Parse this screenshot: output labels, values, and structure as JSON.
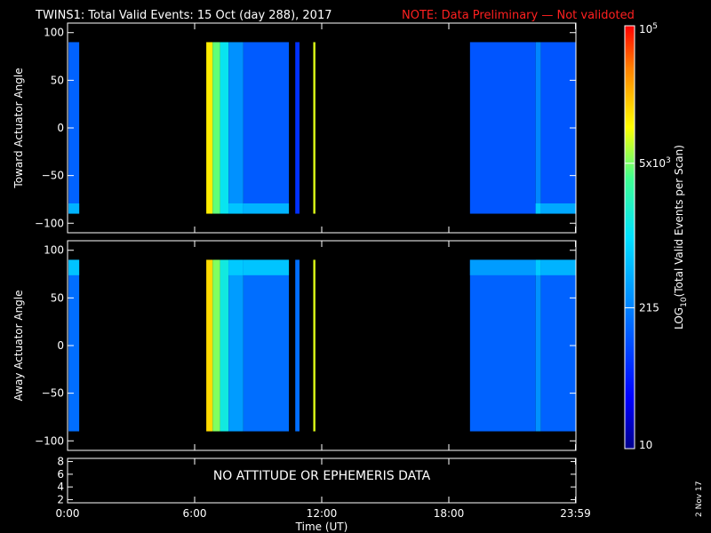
{
  "header": {
    "title": "TWINS1: Total Valid Events: 15 Oct (day 288), 2017",
    "note": "NOTE: Data Preliminary — Not validoted"
  },
  "chart_data": [
    {
      "type": "heatmap",
      "ylabel": "Toward Actuator Angle",
      "ylim": [
        -110,
        110
      ],
      "yticks": [
        "100",
        "50",
        "0",
        "−50",
        "−100"
      ],
      "ytick_values": [
        100,
        50,
        0,
        -50,
        -100
      ],
      "xlim_hours": [
        0,
        24
      ],
      "data_extent_deg": [
        -90,
        90
      ],
      "blocks": [
        {
          "t0": 0.05,
          "t1": 0.55,
          "level": 0.28,
          "bottom_level": 0.42
        },
        {
          "t0": 6.55,
          "t1": 6.85,
          "level": 0.78
        },
        {
          "t0": 6.85,
          "t1": 7.2,
          "level": 0.66
        },
        {
          "t0": 7.2,
          "t1": 7.6,
          "level": 0.52
        },
        {
          "t0": 7.6,
          "t1": 8.3,
          "level": 0.36,
          "bottom_level": 0.45
        },
        {
          "t0": 8.3,
          "t1": 10.45,
          "level": 0.27,
          "bottom_level": 0.42
        },
        {
          "t0": 10.75,
          "t1": 10.95,
          "level": 0.2
        },
        {
          "t0": 11.6,
          "t1": 11.7,
          "level": 0.74
        },
        {
          "t0": 19.0,
          "t1": 22.1,
          "level": 0.26
        },
        {
          "t0": 22.1,
          "t1": 22.35,
          "level": 0.34,
          "bottom_level": 0.46
        },
        {
          "t0": 22.35,
          "t1": 24.0,
          "level": 0.26,
          "bottom_level": 0.4
        }
      ]
    },
    {
      "type": "heatmap",
      "ylabel": "Away Actuator Angle",
      "ylim": [
        -110,
        110
      ],
      "yticks": [
        "100",
        "50",
        "0",
        "−50",
        "−100"
      ],
      "ytick_values": [
        100,
        50,
        0,
        -50,
        -100
      ],
      "xlim_hours": [
        0,
        24
      ],
      "data_extent_deg": [
        -90,
        90
      ],
      "blocks": [
        {
          "t0": 0.05,
          "t1": 0.55,
          "level": 0.3,
          "top_level": 0.45
        },
        {
          "t0": 6.55,
          "t1": 6.85,
          "level": 0.8
        },
        {
          "t0": 6.85,
          "t1": 7.2,
          "level": 0.68
        },
        {
          "t0": 7.2,
          "t1": 7.6,
          "level": 0.54
        },
        {
          "t0": 7.6,
          "t1": 8.3,
          "level": 0.38,
          "top_level": 0.46
        },
        {
          "t0": 8.3,
          "t1": 10.45,
          "level": 0.3,
          "top_level": 0.45
        },
        {
          "t0": 10.75,
          "t1": 10.95,
          "level": 0.3
        },
        {
          "t0": 11.6,
          "t1": 11.7,
          "level": 0.74
        },
        {
          "t0": 19.0,
          "t1": 22.1,
          "level": 0.28,
          "top_level": 0.38
        },
        {
          "t0": 22.1,
          "t1": 22.35,
          "level": 0.36,
          "top_level": 0.46
        },
        {
          "t0": 22.35,
          "t1": 24.0,
          "level": 0.28,
          "top_level": 0.42
        }
      ]
    }
  ],
  "ephemeris_panel": {
    "message": "NO ATTITUDE OR EPHEMERIS DATA",
    "yticks": [
      "8",
      "6",
      "4",
      "2"
    ],
    "ytick_values": [
      8,
      6,
      4,
      2
    ],
    "ylim": [
      1.5,
      8.5
    ]
  },
  "x_axis": {
    "label": "Time (UT)",
    "ticks": [
      {
        "label": "0:00",
        "hours": 0
      },
      {
        "label": "6:00",
        "hours": 6
      },
      {
        "label": "12:00",
        "hours": 12
      },
      {
        "label": "18:00",
        "hours": 18
      },
      {
        "label": "23:59",
        "hours": 23.98
      }
    ]
  },
  "colorbar": {
    "label_main": "LOG",
    "label_sub": "10",
    "label_rest": "(Total Valid Events per Scan)",
    "scale": "log",
    "range": [
      10,
      100000
    ],
    "ticks": [
      {
        "label": "10",
        "value": 10
      },
      {
        "label": "215",
        "value": 215
      },
      {
        "label": "5x10",
        "sup": "3",
        "value": 5000
      },
      {
        "label": "10",
        "sup": "5",
        "value": 100000
      }
    ]
  },
  "footer": {
    "date_stamp": "2 Nov 17"
  }
}
